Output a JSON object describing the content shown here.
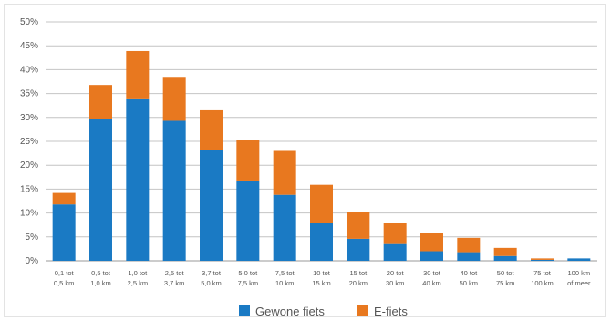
{
  "chart_data": {
    "type": "bar",
    "stacked": true,
    "categories": [
      [
        "0,1 tot",
        "0,5 km"
      ],
      [
        "0,5 tot",
        "1,0 km"
      ],
      [
        "1,0 tot",
        "2,5 km"
      ],
      [
        "2,5 tot",
        "3,7 km"
      ],
      [
        "3,7 tot",
        "5,0 km"
      ],
      [
        "5,0 tot",
        "7,5 km"
      ],
      [
        "7,5 tot",
        "10 km"
      ],
      [
        "10 tot",
        "15 km"
      ],
      [
        "15 tot",
        "20 km"
      ],
      [
        "20 tot",
        "30 km"
      ],
      [
        "30 tot",
        "40 km"
      ],
      [
        "40 tot",
        "50 km"
      ],
      [
        "50 tot",
        "75 km"
      ],
      [
        "75 tot",
        "100 km"
      ],
      [
        "100 km",
        "of meer"
      ]
    ],
    "series": [
      {
        "name": "Gewone fiets",
        "color": "#1a7ac4",
        "values": [
          11.8,
          29.7,
          33.8,
          29.3,
          23.2,
          16.8,
          13.8,
          8.0,
          4.6,
          3.5,
          2.0,
          1.8,
          1.0,
          0.2,
          0.5
        ]
      },
      {
        "name": "E-fiets",
        "color": "#e8781f",
        "values": [
          2.4,
          7.1,
          10.1,
          9.2,
          8.3,
          8.4,
          9.2,
          7.9,
          5.7,
          4.4,
          3.9,
          3.0,
          1.7,
          0.3,
          0.0
        ]
      }
    ],
    "yticks": [
      "0%",
      "5%",
      "10%",
      "15%",
      "20%",
      "25%",
      "30%",
      "35%",
      "40%",
      "45%",
      "50%"
    ],
    "ylim": [
      0,
      50
    ],
    "grid": true,
    "legend": "bottom"
  }
}
